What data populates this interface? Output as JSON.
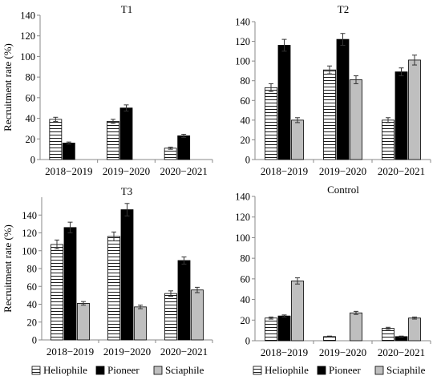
{
  "chart_data": [
    {
      "type": "bar",
      "title": "T1",
      "ylabel": "Recruitment rate (%)",
      "ylim": [
        0,
        140
      ],
      "yticks": [
        0,
        20,
        40,
        60,
        80,
        100,
        120,
        140
      ],
      "categories": [
        "2018−2019",
        "2019−2020",
        "2020−2021"
      ],
      "series": [
        {
          "name": "Heliophile",
          "values": [
            39,
            37,
            11
          ],
          "errors": [
            2,
            2,
            1
          ]
        },
        {
          "name": "Pioneer",
          "values": [
            16,
            50,
            23
          ],
          "errors": [
            1,
            3,
            1.5
          ]
        },
        {
          "name": "Sciaphile",
          "values": [
            null,
            null,
            null
          ],
          "errors": [
            null,
            null,
            null
          ]
        }
      ],
      "legend": "none"
    },
    {
      "type": "bar",
      "title": "T2",
      "ylabel": "",
      "ylim": [
        0,
        140
      ],
      "yticks": [
        0,
        20,
        40,
        60,
        80,
        100,
        120,
        140
      ],
      "categories": [
        "2018−2019",
        "2019−2020",
        "2020−2021"
      ],
      "series": [
        {
          "name": "Heliophile",
          "values": [
            73,
            91,
            40
          ],
          "errors": [
            4,
            4,
            2.5
          ]
        },
        {
          "name": "Pioneer",
          "values": [
            116,
            122,
            89
          ],
          "errors": [
            6,
            6,
            4
          ]
        },
        {
          "name": "Sciaphile",
          "values": [
            40,
            81,
            101
          ],
          "errors": [
            2.5,
            4,
            5
          ]
        }
      ],
      "legend": "none"
    },
    {
      "type": "bar",
      "title": "T3",
      "ylabel": "Recruitment rate (%)",
      "ylim": [
        0,
        160
      ],
      "yticks": [
        0,
        20,
        40,
        60,
        80,
        100,
        120,
        140
      ],
      "categories": [
        "2018−2019",
        "2019−2020",
        "2020−2021"
      ],
      "series": [
        {
          "name": "Heliophile",
          "values": [
            107,
            116,
            52
          ],
          "errors": [
            5,
            5,
            3
          ]
        },
        {
          "name": "Pioneer",
          "values": [
            126,
            146,
            89
          ],
          "errors": [
            6,
            7,
            4
          ]
        },
        {
          "name": "Sciaphile",
          "values": [
            41,
            37,
            56
          ],
          "errors": [
            2,
            2,
            3
          ]
        }
      ],
      "legend": "bottom"
    },
    {
      "type": "bar",
      "title": "Control",
      "ylabel": "",
      "ylim": [
        0,
        140
      ],
      "yticks": [
        0,
        20,
        40,
        60,
        80,
        100,
        120,
        140
      ],
      "categories": [
        "2018−2019",
        "2019−2020",
        "2020−2021"
      ],
      "series": [
        {
          "name": "Heliophile",
          "values": [
            22,
            4,
            12
          ],
          "errors": [
            1,
            0.5,
            1
          ]
        },
        {
          "name": "Pioneer",
          "values": [
            24,
            null,
            4
          ],
          "errors": [
            1,
            null,
            0.5
          ]
        },
        {
          "name": "Sciaphile",
          "values": [
            58,
            27,
            22
          ],
          "errors": [
            3,
            1.5,
            1
          ]
        }
      ],
      "legend": "bottom"
    }
  ],
  "legend_labels": [
    "Heliophile",
    "Pioneer",
    "Sciaphile"
  ],
  "colors": {
    "heliophile_fill": "#ffffff",
    "pioneer_fill": "#000000",
    "sciaphile_fill": "#bfbfbf",
    "stroke": "#000000",
    "axis": "#888888"
  }
}
